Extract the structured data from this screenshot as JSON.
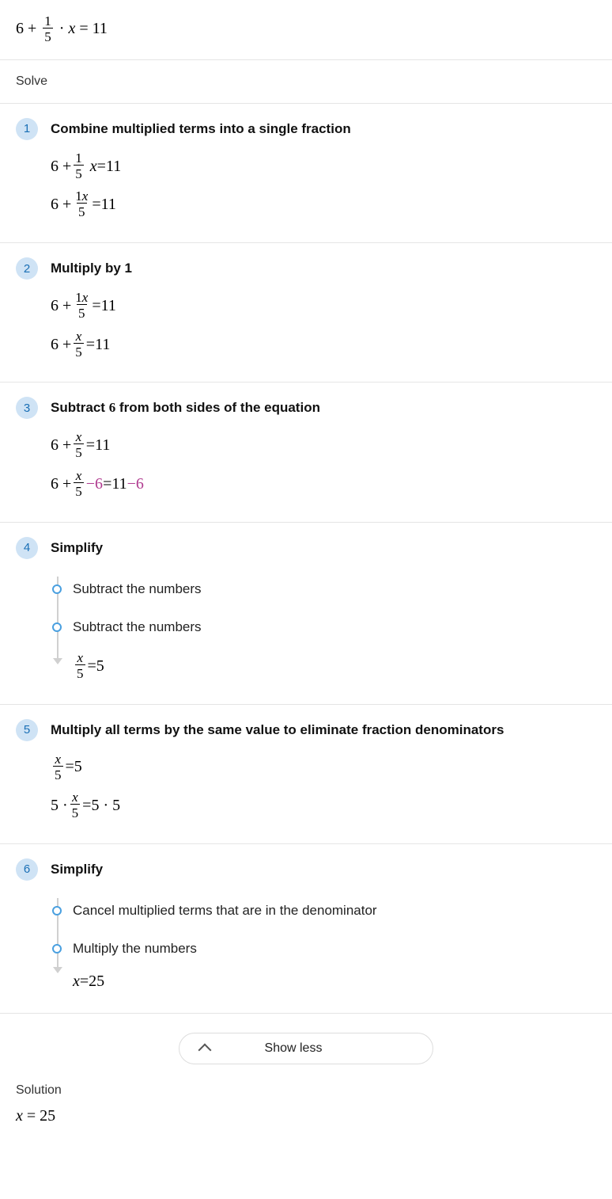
{
  "header_equation": {
    "lhs_pre": "6 + ",
    "frac_num": "1",
    "frac_den": "5",
    "mid": " · ",
    "var": "x",
    "eq": " = ",
    "rhs": "11"
  },
  "solve_label": "Solve",
  "solution_label": "Solution",
  "solution_eq": {
    "var": "x",
    "eq": " = ",
    "val": "25"
  },
  "show_less": "Show less",
  "steps": [
    {
      "n": "1",
      "title": "Combine multiplied terms into a single fraction",
      "lines": [
        {
          "pre": "6 + ",
          "frac_num": "1",
          "frac_den": "5",
          "post_var": "x",
          "eq": " = ",
          "rhs": "11"
        },
        {
          "pre": "6 + ",
          "frac_num": "1x",
          "frac_den": "5",
          "eq": " = ",
          "rhs": "11"
        }
      ]
    },
    {
      "n": "2",
      "title": "Multiply by 1",
      "lines": [
        {
          "pre": "6 + ",
          "frac_num": "1x",
          "frac_den": "5",
          "eq": " = ",
          "rhs": "11"
        },
        {
          "pre": "6 + ",
          "frac_num": "x",
          "frac_den": "5",
          "num_italic": true,
          "eq": " = ",
          "rhs": "11"
        }
      ]
    },
    {
      "n": "3",
      "title": "Subtract 6 from both sides of the equation",
      "lines": [
        {
          "pre": "6 + ",
          "frac_num": "x",
          "frac_den": "5",
          "num_italic": true,
          "eq": " = ",
          "rhs": "11"
        },
        {
          "pre": "6 + ",
          "frac_num": "x",
          "frac_den": "5",
          "num_italic": true,
          "hl_l": " −6",
          "eq": " = ",
          "rhs": "11",
          "hl_r": "−6"
        }
      ]
    },
    {
      "n": "4",
      "title": "Simplify",
      "substeps": [
        "Subtract the numbers",
        "Subtract the numbers"
      ],
      "result": {
        "frac_num": "x",
        "frac_den": "5",
        "num_italic": true,
        "eq": " = ",
        "rhs": "5"
      }
    },
    {
      "n": "5",
      "title": "Multiply all terms by the same value to eliminate fraction denominators",
      "lines": [
        {
          "frac_num": "x",
          "frac_den": "5",
          "num_italic": true,
          "eq": " = ",
          "rhs": "5"
        },
        {
          "pre": "5 · ",
          "frac_num": "x",
          "frac_den": "5",
          "num_italic": true,
          "eq": " = ",
          "rhs": "5 · 5"
        }
      ]
    },
    {
      "n": "6",
      "title": "Simplify",
      "substeps": [
        "Cancel multiplied terms that are in the denominator",
        "Multiply the numbers"
      ],
      "result": {
        "var": "x",
        "eq": " = ",
        "val": "25"
      }
    }
  ]
}
